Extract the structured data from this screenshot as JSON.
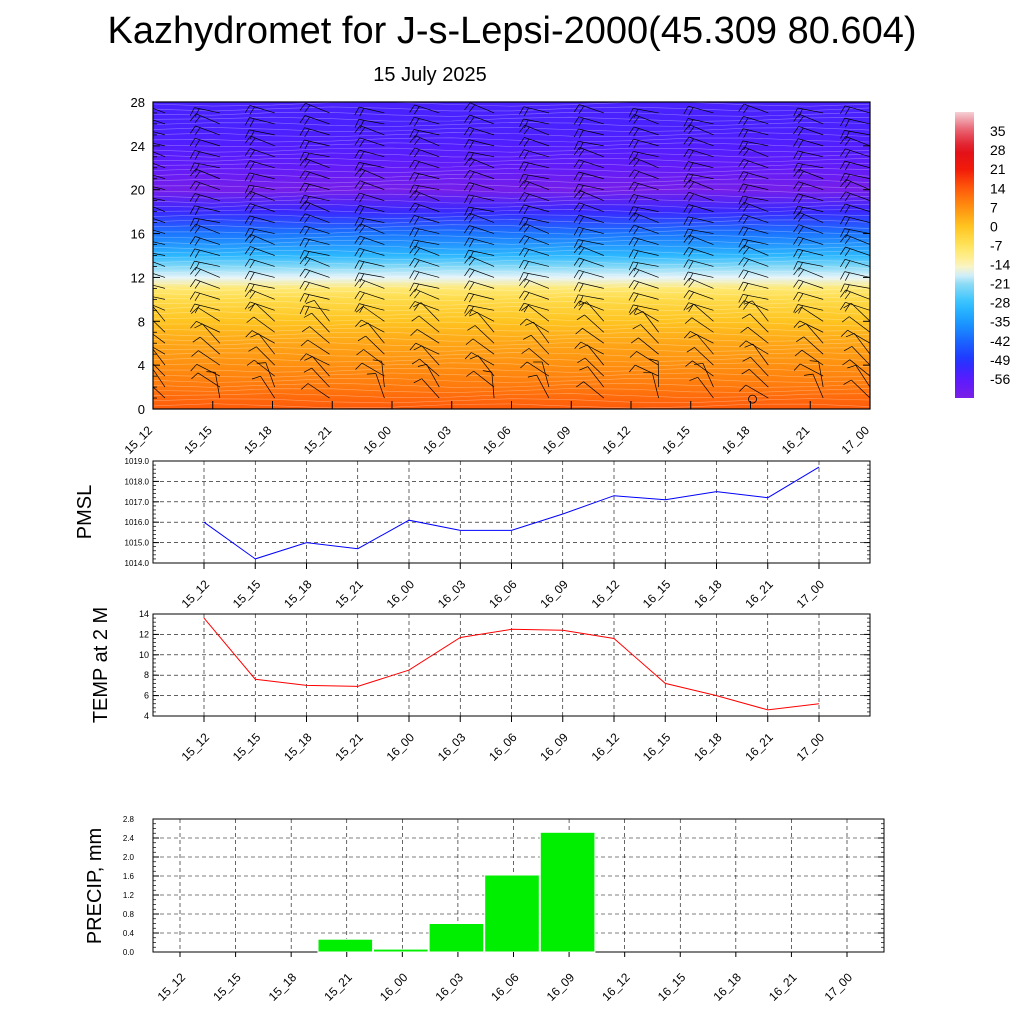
{
  "header": {
    "title": "Kazhydromet for J-s-Lepsi-2000(45.309 80.604)",
    "subtitle": "15 July 2025"
  },
  "time_labels": [
    "15_12",
    "15_15",
    "15_18",
    "15_21",
    "16_00",
    "16_03",
    "16_06",
    "16_09",
    "16_12",
    "16_15",
    "16_18",
    "16_21",
    "17_00"
  ],
  "colors": {
    "pmsl_line": "#0000ff",
    "temp_line": "#ff0000",
    "precip_bar": "#00ee00",
    "grid": "#000000"
  },
  "chart_data": [
    {
      "type": "heatmap",
      "name": "upper-air temperature and wind cross-section",
      "yticks": [
        "0",
        "4",
        "8",
        "12",
        "16",
        "20",
        "24",
        "28"
      ],
      "ylim": [
        0,
        28
      ],
      "x": [
        "15_12",
        "15_15",
        "15_18",
        "15_21",
        "16_00",
        "16_03",
        "16_06",
        "16_09",
        "16_12",
        "16_15",
        "16_18",
        "16_21",
        "17_00"
      ],
      "colorbar": {
        "labels": [
          "35",
          "28",
          "21",
          "14",
          "7",
          "0",
          "-7",
          "-14",
          "-21",
          "-28",
          "-35",
          "-42",
          "-49",
          "-56"
        ],
        "min": -63,
        "max": 42
      },
      "temperature_profile": [
        {
          "level": 0,
          "value": 14
        },
        {
          "level": 2,
          "value": 10
        },
        {
          "level": 4,
          "value": 7
        },
        {
          "level": 6,
          "value": 4
        },
        {
          "level": 8,
          "value": 0
        },
        {
          "level": 10,
          "value": -5
        },
        {
          "level": 11,
          "value": -9
        },
        {
          "level": 12,
          "value": -17
        },
        {
          "level": 13,
          "value": -22
        },
        {
          "level": 14,
          "value": -30
        },
        {
          "level": 16,
          "value": -40
        },
        {
          "level": 18,
          "value": -52
        },
        {
          "level": 20,
          "value": -62
        },
        {
          "level": 22,
          "value": -58
        },
        {
          "level": 24,
          "value": -55
        },
        {
          "level": 26,
          "value": -54
        },
        {
          "level": 28,
          "value": -54
        }
      ],
      "wind_barbs": "present at every time step and level"
    },
    {
      "type": "line",
      "ylabel": "PMSL",
      "ylim": [
        1014.0,
        1019.0
      ],
      "yticks": [
        "1014.0",
        "1015.0",
        "1016.0",
        "1017.0",
        "1018.0",
        "1019.0"
      ],
      "x": [
        "15_12",
        "15_15",
        "15_18",
        "15_21",
        "16_00",
        "16_03",
        "16_06",
        "16_09",
        "16_12",
        "16_15",
        "16_18",
        "16_21",
        "17_00"
      ],
      "series": [
        {
          "values": [
            1016.0,
            1014.2,
            1015.0,
            1014.7,
            1016.1,
            1015.6,
            1015.6,
            1016.4,
            1017.3,
            1017.1,
            1017.5,
            1017.2,
            1018.7
          ]
        }
      ]
    },
    {
      "type": "line",
      "ylabel": "TEMP at 2 M",
      "ylim": [
        4,
        14
      ],
      "yticks": [
        "4",
        "6",
        "8",
        "10",
        "12",
        "14"
      ],
      "x": [
        "15_12",
        "15_15",
        "15_18",
        "15_21",
        "16_00",
        "16_03",
        "16_06",
        "16_09",
        "16_12",
        "16_15",
        "16_18",
        "16_21",
        "17_00"
      ],
      "series": [
        {
          "values": [
            13.6,
            7.6,
            7.0,
            6.9,
            8.5,
            11.7,
            12.5,
            12.4,
            11.6,
            7.2,
            6.0,
            4.6,
            5.2
          ]
        }
      ]
    },
    {
      "type": "bar",
      "ylabel": "PRECIP, mm",
      "ylim": [
        0.0,
        2.8
      ],
      "yticks": [
        "0.0",
        "0.4",
        "0.8",
        "1.2",
        "1.6",
        "2.0",
        "2.4",
        "2.8"
      ],
      "x": [
        "15_12",
        "15_15",
        "15_18",
        "15_21",
        "16_00",
        "16_03",
        "16_06",
        "16_09",
        "16_12",
        "16_15",
        "16_18",
        "16_21",
        "17_00"
      ],
      "values": [
        0,
        0,
        0,
        0.27,
        0.06,
        0.6,
        1.62,
        2.52,
        0,
        0,
        0,
        0,
        0
      ]
    }
  ]
}
